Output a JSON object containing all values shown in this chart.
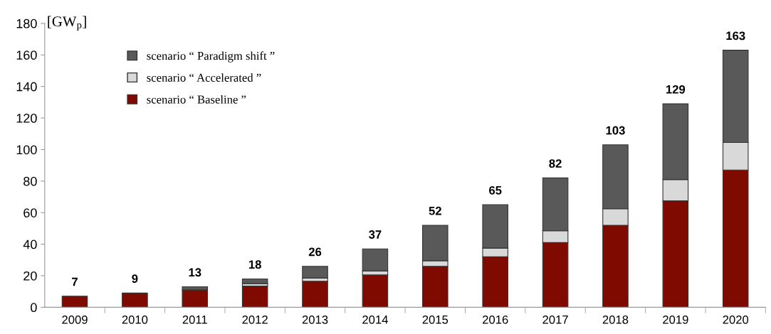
{
  "chart_data": {
    "type": "bar",
    "stacked": true,
    "ylabel": "[GW$_{p}$]",
    "categories": [
      "2009",
      "2010",
      "2011",
      "2012",
      "2013",
      "2014",
      "2015",
      "2016",
      "2017",
      "2018",
      "2019",
      "2020"
    ],
    "series": [
      {
        "name": "scenario “ Baseline ”",
        "color": "#7f0a00",
        "values": [
          7,
          9,
          11,
          13.5,
          16.5,
          20.5,
          26,
          32,
          41,
          52,
          67.5,
          87
        ]
      },
      {
        "name": "scenario “ Accelerated ”",
        "color": "#d9d9d9",
        "values": [
          0,
          0,
          null,
          1.5,
          2,
          2.5,
          3.5,
          5.5,
          7.5,
          10.5,
          13.5,
          17.5
        ]
      },
      {
        "name": "scenario “ Paradigm shift ”",
        "color": "#595959",
        "values": [
          0,
          0,
          2,
          3,
          7.5,
          14,
          22.5,
          27.5,
          33.5,
          40.5,
          48,
          58.5
        ]
      }
    ],
    "totals": [
      "7",
      "9",
      "13",
      "18",
      "26",
      "37",
      "52",
      "65",
      "82",
      "103",
      "129",
      "163"
    ],
    "ylim": [
      0,
      180
    ],
    "yticks": [
      0,
      20,
      40,
      60,
      80,
      100,
      120,
      140,
      160,
      180
    ],
    "grid": false,
    "legend": "top left"
  }
}
